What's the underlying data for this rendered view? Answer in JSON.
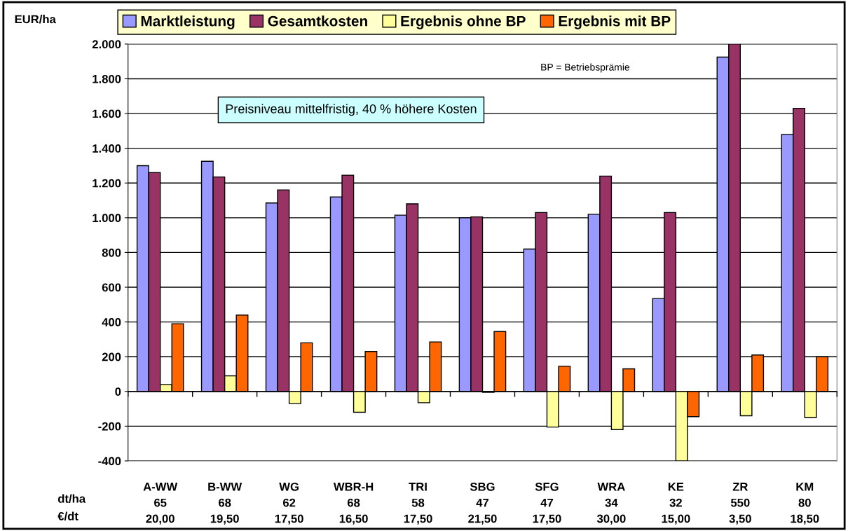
{
  "chart_data": {
    "type": "bar",
    "ylabel": "EUR/ha",
    "categories": [
      "A-WW\n65\n20,00",
      "B-WW\n68\n19,50",
      "WG\n62\n17,50",
      "WBR-H\n68\n16,50",
      "TRI\n58\n17,50",
      "SBG\n47\n21,50",
      "SFG\n47\n17,50",
      "WRA\n34\n30,00",
      "KE\n32\n15,00",
      "ZR\n550\n3,50",
      "KM\n80\n18,50"
    ],
    "series": [
      {
        "name": "Marktleistung",
        "color": "#9999ff",
        "values": [
          1300,
          1325,
          1085,
          1120,
          1015,
          1000,
          820,
          1020,
          535,
          1925,
          1480
        ]
      },
      {
        "name": "Gesamtkosten",
        "color": "#993366",
        "values": [
          1260,
          1235,
          1160,
          1245,
          1080,
          1005,
          1030,
          1240,
          1030,
          2000,
          1630
        ]
      },
      {
        "name": "Ergebnis ohne BP",
        "color": "#ffff99",
        "values": [
          40,
          90,
          -70,
          -120,
          -65,
          -5,
          -205,
          -220,
          -400,
          -140,
          -150
        ]
      },
      {
        "name": "Ergebnis mit BP",
        "color": "#ff6600",
        "values": [
          390,
          440,
          280,
          230,
          285,
          345,
          145,
          130,
          -145,
          210,
          200
        ]
      }
    ],
    "ylim": [
      -400,
      2000
    ],
    "yticks": [
      {
        "value": -400,
        "label": "-400"
      },
      {
        "value": -200,
        "label": "-200"
      },
      0,
      200,
      400,
      600,
      800,
      {
        "value": 1000,
        "label": "1.000"
      },
      {
        "value": 1200,
        "label": "1.200"
      },
      {
        "value": 1400,
        "label": "1.400"
      },
      {
        "value": 1600,
        "label": "1.600"
      },
      {
        "value": 1800,
        "label": "1.800"
      },
      {
        "value": 2000,
        "label": "2.000"
      }
    ],
    "grid": "y",
    "legend": "top",
    "annotations": [
      "BP = Betriebsprämie",
      "Preisniveau mittelfristig, 40 % höhere Kosten",
      "dt/ha",
      "€/dt"
    ]
  }
}
